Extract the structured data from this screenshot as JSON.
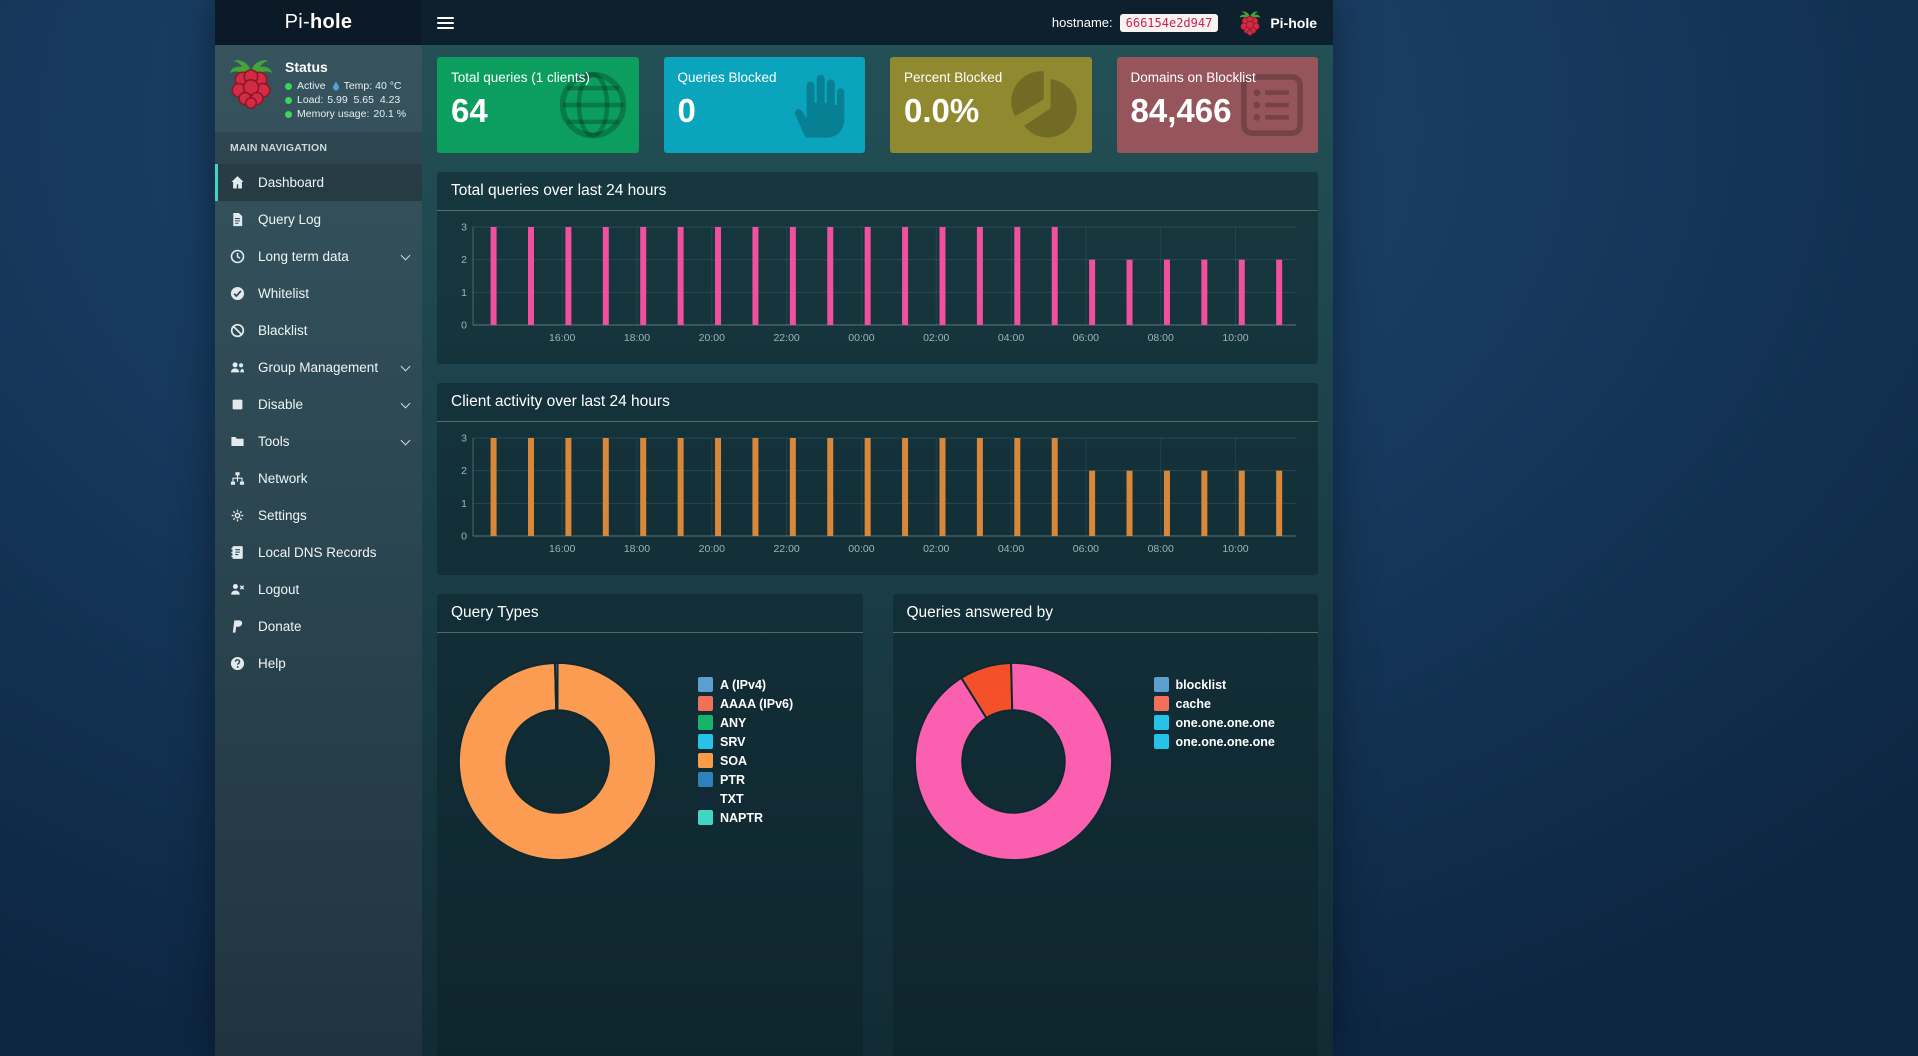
{
  "navbar": {
    "brand_prefix": "Pi-",
    "brand_bold": "hole",
    "hostname_label": "hostname:",
    "hostname_value": "666154e2d947",
    "logo_label": "Pi-hole"
  },
  "sidebar": {
    "status": {
      "title": "Status",
      "dot_color": "#3bd45c",
      "rows": [
        {
          "label": "Active",
          "temp_label": "Temp:",
          "temp_value": "40 °C"
        },
        {
          "label": "Load:",
          "value": "5.99  5.65  4.23"
        },
        {
          "label": "Memory usage:",
          "value": "20.1 %"
        }
      ]
    },
    "section_header": "MAIN NAVIGATION",
    "items": [
      {
        "label": "Dashboard",
        "icon": "home",
        "active": true
      },
      {
        "label": "Query Log",
        "icon": "file"
      },
      {
        "label": "Long term data",
        "icon": "clock",
        "expandable": true
      },
      {
        "label": "Whitelist",
        "icon": "check-circle"
      },
      {
        "label": "Blacklist",
        "icon": "ban"
      },
      {
        "label": "Group Management",
        "icon": "users",
        "expandable": true
      },
      {
        "label": "Disable",
        "icon": "stop",
        "expandable": true
      },
      {
        "label": "Tools",
        "icon": "folder",
        "expandable": true
      },
      {
        "label": "Network",
        "icon": "network"
      },
      {
        "label": "Settings",
        "icon": "gears"
      },
      {
        "label": "Local DNS Records",
        "icon": "address-book"
      },
      {
        "label": "Logout",
        "icon": "user-times"
      },
      {
        "label": "Donate",
        "icon": "paypal"
      },
      {
        "label": "Help",
        "icon": "question"
      }
    ]
  },
  "cards": [
    {
      "title": "Total queries (1 clients)",
      "value": "64",
      "color": "#0b9e5e",
      "icon": "globe"
    },
    {
      "title": "Queries Blocked",
      "value": "0",
      "color": "#0aa4bd",
      "icon": "hand"
    },
    {
      "title": "Percent Blocked",
      "value": "0.0%",
      "color": "#918930",
      "icon": "pie"
    },
    {
      "title": "Domains on Blocklist",
      "value": "84,466",
      "color": "#96555a",
      "icon": "list"
    }
  ],
  "chart_data": [
    {
      "type": "bar",
      "title": "Total queries over last 24 hours",
      "color": "#f0509e",
      "ylim": [
        0,
        3
      ],
      "yticks": [
        0,
        1,
        2,
        3
      ],
      "x_ticks": [
        "16:00",
        "18:00",
        "20:00",
        "22:00",
        "00:00",
        "02:00",
        "04:00",
        "06:00",
        "08:00",
        "10:00"
      ],
      "times": [
        "14:10",
        "15:10",
        "16:10",
        "17:10",
        "18:10",
        "19:10",
        "20:10",
        "21:10",
        "22:10",
        "23:10",
        "00:10",
        "01:10",
        "02:10",
        "03:10",
        "04:10",
        "05:10",
        "06:10",
        "07:10",
        "08:10",
        "09:10",
        "10:10",
        "11:10"
      ],
      "values": [
        3,
        3,
        3,
        3,
        3,
        3,
        3,
        3,
        3,
        3,
        3,
        3,
        3,
        3,
        3,
        3,
        2,
        2,
        2,
        2,
        2,
        2
      ]
    },
    {
      "type": "bar",
      "title": "Client activity over last 24 hours",
      "color": "#d9883b",
      "ylim": [
        0,
        3
      ],
      "yticks": [
        0,
        1,
        2,
        3
      ],
      "x_ticks": [
        "16:00",
        "18:00",
        "20:00",
        "22:00",
        "00:00",
        "02:00",
        "04:00",
        "06:00",
        "08:00",
        "10:00"
      ],
      "times": [
        "14:10",
        "15:10",
        "16:10",
        "17:10",
        "18:10",
        "19:10",
        "20:10",
        "21:10",
        "22:10",
        "23:10",
        "00:10",
        "01:10",
        "02:10",
        "03:10",
        "04:10",
        "05:10",
        "06:10",
        "07:10",
        "08:10",
        "09:10",
        "10:10",
        "11:10"
      ],
      "values": [
        3,
        3,
        3,
        3,
        3,
        3,
        3,
        3,
        3,
        3,
        3,
        3,
        3,
        3,
        3,
        3,
        2,
        2,
        2,
        2,
        2,
        2
      ]
    },
    {
      "type": "doughnut",
      "title": "Query Types",
      "legend": [
        {
          "label": "A (IPv4)",
          "color": "#5d9fd0"
        },
        {
          "label": "AAAA (IPv6)",
          "color": "#f2705a"
        },
        {
          "label": "ANY",
          "color": "#18b26b"
        },
        {
          "label": "SRV",
          "color": "#26c2e8"
        },
        {
          "label": "SOA",
          "color": "#f99c45"
        },
        {
          "label": "PTR",
          "color": "#2f80bd"
        },
        {
          "label": "TXT",
          "color": "#12293b"
        },
        {
          "label": "NAPTR",
          "color": "#41d6c4"
        }
      ],
      "rotation_deg": 0,
      "slices": [
        {
          "label": "SOA",
          "value": 99.6,
          "color": "#fb9c52"
        },
        {
          "label": "A (IPv4)",
          "value": 0.4,
          "color": "#5d9fd0"
        }
      ]
    },
    {
      "type": "doughnut",
      "title": "Queries answered by",
      "legend": [
        {
          "label": "blocklist",
          "color": "#5d9fd0"
        },
        {
          "label": "cache",
          "color": "#f2705a"
        },
        {
          "label": "one.one.one.one",
          "color": "#26c2e8"
        },
        {
          "label": "one.one.one.one",
          "color": "#26c2e8"
        }
      ],
      "rotation_deg": -32,
      "slices": [
        {
          "label": "cache",
          "value": 8.5,
          "color": "#f4502a"
        },
        {
          "label": "one.one.one.one",
          "value": 91.5,
          "color": "#fb5fb0"
        }
      ]
    }
  ]
}
